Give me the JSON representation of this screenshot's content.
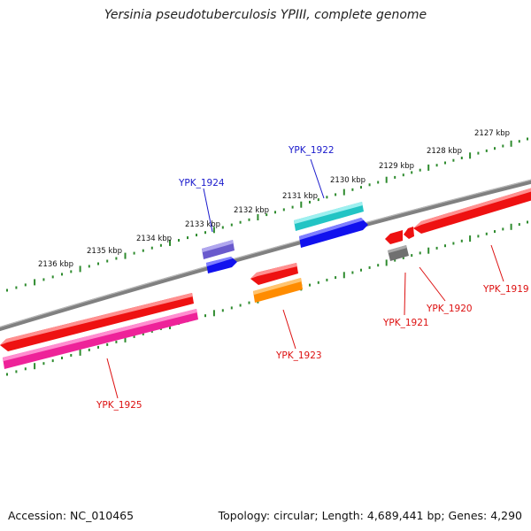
{
  "title": "Yersinia pseudotuberculosis YPIII, complete genome",
  "footer": {
    "accession": "Accession: NC_010465",
    "summary": "Topology: circular; Length: 4,689,441 bp; Genes: 4,290"
  },
  "colors": {
    "backbone": "#808080",
    "tick": "#2e8b2e",
    "forward_label": "#1a1acc",
    "reverse_label": "#dd1111"
  },
  "kbp_labels": [
    "2127 kbp",
    "2128 kbp",
    "2129 kbp",
    "2130 kbp",
    "2131 kbp",
    "2132 kbp",
    "2133 kbp",
    "2134 kbp",
    "2135 kbp",
    "2136 kbp"
  ],
  "genes": [
    {
      "label": "YPK_1919",
      "strand": "reverse",
      "color": "#ee1111"
    },
    {
      "label": "YPK_1920",
      "strand": "reverse",
      "color": "#ee1111"
    },
    {
      "label": "YPK_1921",
      "strand": "reverse",
      "color": "#777777"
    },
    {
      "label": "YPK_1922",
      "strand": "forward",
      "color": "#22c4c4"
    },
    {
      "label": "YPK_1923",
      "strand": "reverse",
      "color": "#ff8c00"
    },
    {
      "label": "YPK_1924",
      "strand": "forward",
      "color": "#6a5acd"
    },
    {
      "label": "YPK_1925",
      "strand": "reverse",
      "color": "#ee2299"
    }
  ]
}
